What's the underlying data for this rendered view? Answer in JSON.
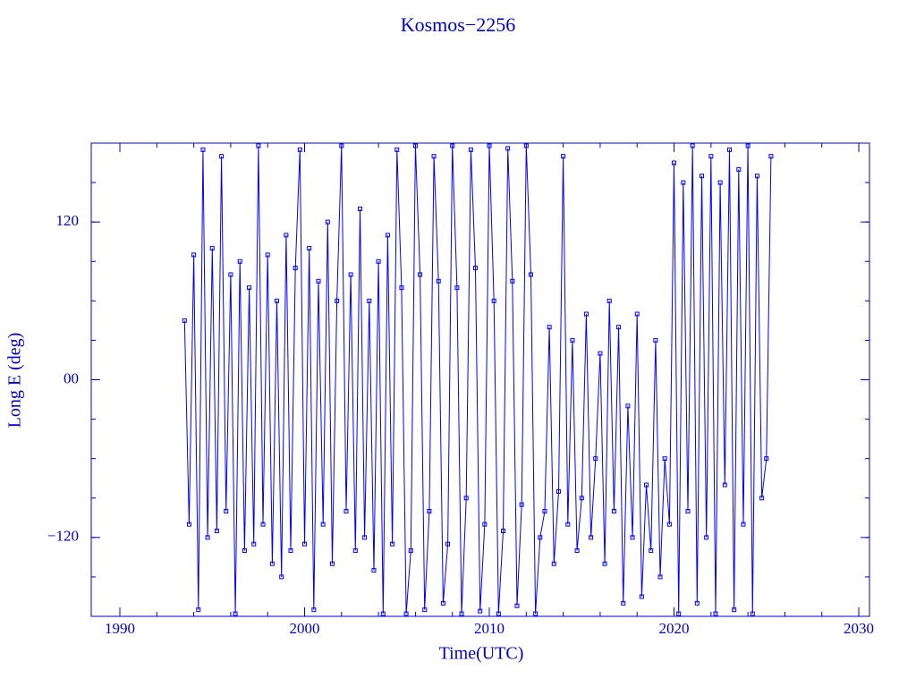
{
  "chart_data": {
    "type": "line",
    "title": "Kosmos−2256",
    "xlabel": "Time(UTC)",
    "ylabel": "Long E (deg)",
    "xlim": [
      1988.45,
      2030.58
    ],
    "ylim": [
      -180,
      180
    ],
    "xticks": [
      1990,
      2000,
      2010,
      2020,
      2030
    ],
    "yticks": [
      {
        "value": -120,
        "label": "−120"
      },
      {
        "value": 0,
        "label": "00"
      },
      120
    ],
    "xminorticks": [
      1990,
      1992,
      1994,
      1996,
      1998,
      2000,
      2002,
      2004,
      2006,
      2008,
      2010,
      2012,
      2014,
      2016,
      2018,
      2020,
      2022,
      2024,
      2026,
      2028,
      2030
    ],
    "yminorticks": [
      -150,
      -120,
      -90,
      -60,
      -30,
      0,
      30,
      60,
      90,
      120,
      150
    ],
    "markers": true,
    "series": [
      {
        "color": "#0000ff",
        "x": [
          1993.5,
          1993.75,
          1994,
          1994.25,
          1994.5,
          1994.75,
          1995,
          1995.25,
          1995.5,
          1995.75,
          1996,
          1996.25,
          1996.5,
          1996.75,
          1997,
          1997.25,
          1997.5,
          1997.75,
          1998,
          1998.25,
          1998.5,
          1998.75,
          1999,
          1999.25,
          1999.5,
          1999.75,
          2000,
          2000.25,
          2000.5,
          2000.75,
          2001,
          2001.25,
          2001.5,
          2001.75,
          2002,
          2002.25,
          2002.5,
          2002.75,
          2003,
          2003.25,
          2003.5,
          2003.75,
          2004,
          2004.25,
          2004.5,
          2004.75,
          2005,
          2005.25,
          2005.5,
          2005.75,
          2006,
          2006.25,
          2006.5,
          2006.75,
          2007,
          2007.25,
          2007.5,
          2007.75,
          2008,
          2008.25,
          2008.5,
          2008.75,
          2009,
          2009.25,
          2009.5,
          2009.75,
          2010,
          2010.25,
          2010.5,
          2010.75,
          2011,
          2011.25,
          2011.5,
          2011.75,
          2012,
          2012.25,
          2012.5,
          2012.75,
          2013,
          2013.25,
          2013.5,
          2013.75,
          2014,
          2014.25,
          2014.5,
          2014.75,
          2015,
          2015.25,
          2015.5,
          2015.75,
          2016,
          2016.25,
          2016.5,
          2016.75,
          2017,
          2017.25,
          2017.5,
          2017.75,
          2018,
          2018.25,
          2018.5,
          2018.75,
          2019,
          2019.25,
          2019.5,
          2019.75,
          2020,
          2020.25,
          2020.5,
          2020.75,
          2021,
          2021.25,
          2021.5,
          2021.75,
          2022,
          2022.25,
          2022.5,
          2022.75,
          2023,
          2023.25,
          2023.5,
          2023.75,
          2024,
          2024.25,
          2024.5,
          2024.75,
          2025,
          2025.25
        ],
        "values": [
          45,
          -110,
          95,
          -175,
          175,
          -120,
          100,
          -115,
          170,
          -100,
          80,
          -178,
          90,
          -130,
          70,
          -125,
          178,
          -110,
          95,
          -140,
          60,
          -150,
          110,
          -130,
          85,
          175,
          -125,
          100,
          -175,
          75,
          -110,
          120,
          -140,
          60,
          178,
          -100,
          80,
          -130,
          130,
          -120,
          60,
          -145,
          90,
          -178,
          110,
          -125,
          175,
          70,
          -178,
          -130,
          178,
          80,
          -175,
          -100,
          170,
          75,
          -170,
          -125,
          178,
          70,
          -178,
          -90,
          175,
          85,
          -176,
          -110,
          178,
          60,
          -178,
          -115,
          176,
          75,
          -172,
          -95,
          178,
          80,
          -178,
          -120,
          -100,
          40,
          -140,
          -85,
          170,
          -110,
          30,
          -130,
          -90,
          50,
          -120,
          -60,
          20,
          -140,
          60,
          -100,
          40,
          -170,
          -20,
          -120,
          50,
          -165,
          -80,
          -130,
          30,
          -150,
          -60,
          -110,
          165,
          -178,
          150,
          -100,
          178,
          -170,
          155,
          -120,
          170,
          -178,
          150,
          -80,
          175,
          -175,
          160,
          -110,
          178,
          -178,
          155,
          -90,
          -60,
          170
        ]
      }
    ]
  }
}
